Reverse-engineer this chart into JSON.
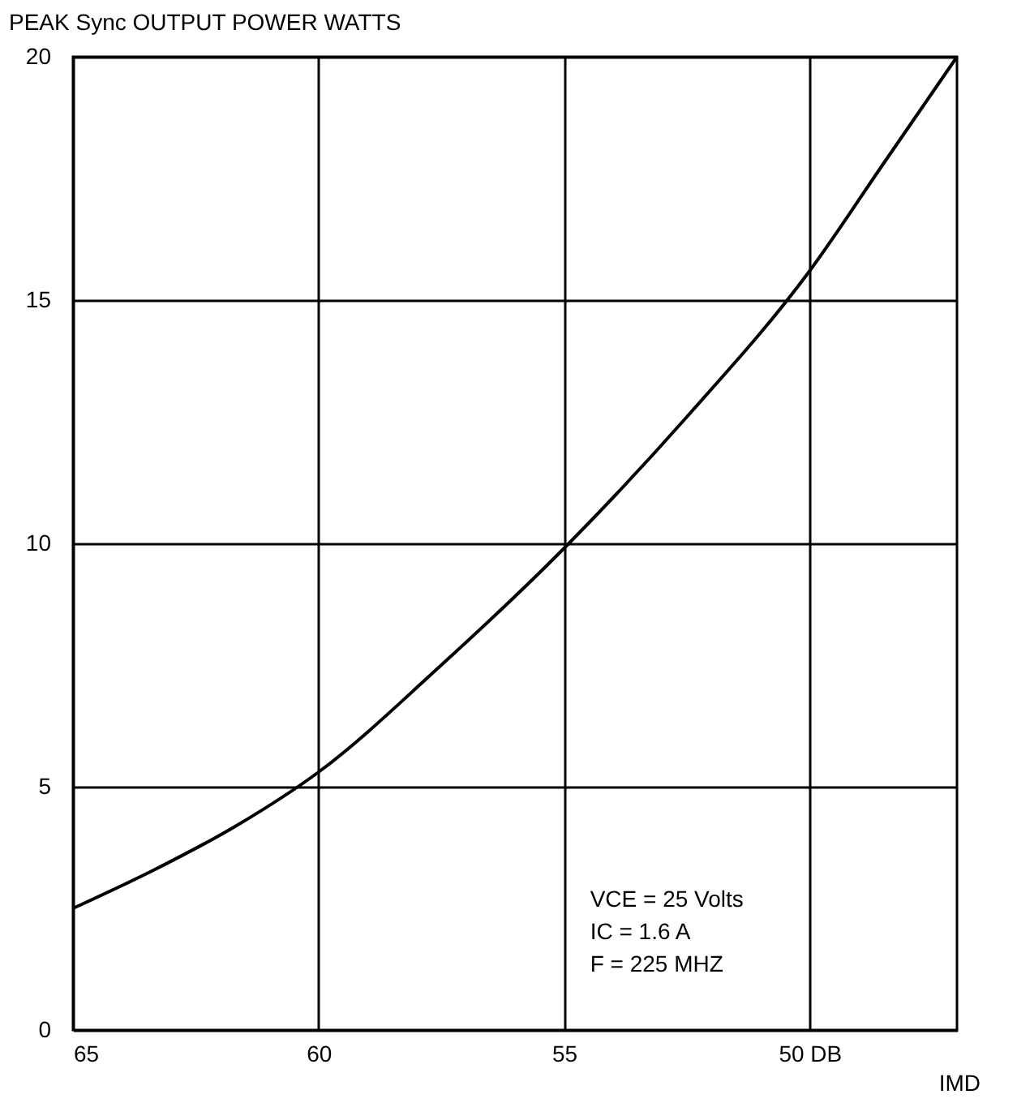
{
  "chart_data": {
    "type": "line",
    "ylabel": "PEAK Sync OUTPUT POWER WATTS",
    "xlabel": "IMD",
    "x": [
      65,
      63.33,
      61.67,
      60,
      57.5,
      55,
      52.5,
      50,
      48.5,
      47
    ],
    "series": [
      {
        "color": "#000000",
        "values": [
          2.5,
          3.3,
          4.2,
          5.3,
          7.5,
          9.9,
          12.6,
          15.6,
          17.8,
          20
        ]
      }
    ],
    "xlim": [
      65,
      47
    ],
    "xticks": [
      65,
      60,
      55,
      {
        "value": 50,
        "label": "50 DB"
      }
    ],
    "ylim": [
      0,
      20
    ],
    "yticks": [
      0,
      5,
      10,
      15,
      20
    ],
    "grid": true,
    "marker": "none",
    "line_style": "solid",
    "annotations": [
      "VCE = 25 Volts",
      "IC = 1.6 A",
      "F = 225 MHZ"
    ]
  }
}
